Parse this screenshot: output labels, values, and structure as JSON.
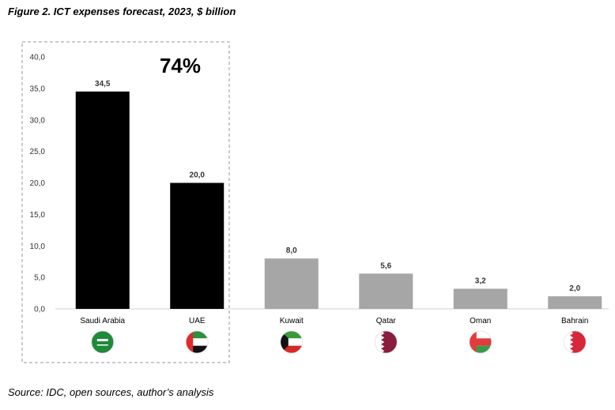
{
  "figure": {
    "title": "Figure 2. ICT expenses forecast, 2023, $ billion",
    "source": "Source: IDC, open sources, author’s analysis",
    "highlight_label": "74%"
  },
  "chart_data": {
    "type": "bar",
    "title": "Figure 2. ICT expenses forecast, 2023, $ billion",
    "categories": [
      "Saudi Arabia",
      "UAE",
      "Kuwait",
      "Qatar",
      "Oman",
      "Bahrain"
    ],
    "values": [
      34.5,
      20.0,
      8.0,
      5.6,
      3.2,
      2.0
    ],
    "value_labels": [
      "34,5",
      "20,0",
      "8,0",
      "5,6",
      "3,2",
      "2,0"
    ],
    "ylim": [
      0,
      40
    ],
    "yticks": [
      "0,0",
      "5,0",
      "10,0",
      "15,0",
      "20,0",
      "25,0",
      "30,0",
      "35,0",
      "40,0"
    ],
    "ytick_values": [
      0,
      5,
      10,
      15,
      20,
      25,
      30,
      35,
      40
    ],
    "highlighted": [
      true,
      true,
      false,
      false,
      false,
      false
    ],
    "colors": {
      "highlight": "#000000",
      "other": "#a6a6a6",
      "frame": "#999999"
    },
    "grid": false,
    "icons": [
      "saudi-arabia-flag-icon",
      "uae-flag-icon",
      "kuwait-flag-icon",
      "qatar-flag-icon",
      "oman-flag-icon",
      "bahrain-flag-icon"
    ]
  }
}
